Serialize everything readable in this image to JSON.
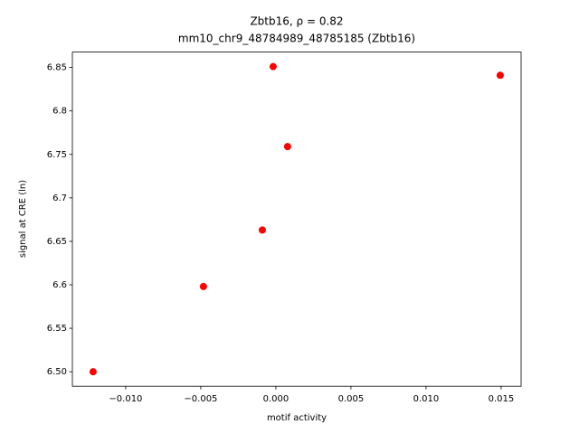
{
  "chart_data": {
    "type": "scatter",
    "title": "Zbtb16, ρ = 0.82",
    "subtitle": "mm10_chr9_48784989_48785185 (Zbtb16)",
    "x_label": "motif activity",
    "y_label": "signal at CRE (ln)",
    "color": "#ff0000",
    "x": [
      -0.01217,
      -0.00482,
      -0.0009,
      -0.00018,
      0.00078,
      0.01494
    ],
    "values": [
      6.5,
      6.598,
      6.663,
      6.851,
      6.759,
      6.841
    ],
    "xlim": [
      -0.01355,
      0.01633
    ],
    "ylim": [
      6.4833,
      6.8677
    ],
    "xticks": [
      {
        "value": -0.01,
        "label": "−0.010"
      },
      {
        "value": -0.005,
        "label": "−0.005"
      },
      {
        "value": 0,
        "label": "0.000"
      },
      {
        "value": 0.005,
        "label": "0.005"
      },
      {
        "value": 0.01,
        "label": "0.010"
      },
      {
        "value": 0.015,
        "label": "0.015"
      }
    ],
    "yticks": [
      {
        "value": 6.5,
        "label": "6.50"
      },
      6.55,
      6.6,
      6.65,
      6.7,
      6.75,
      6.8,
      6.85
    ],
    "grid": false
  }
}
